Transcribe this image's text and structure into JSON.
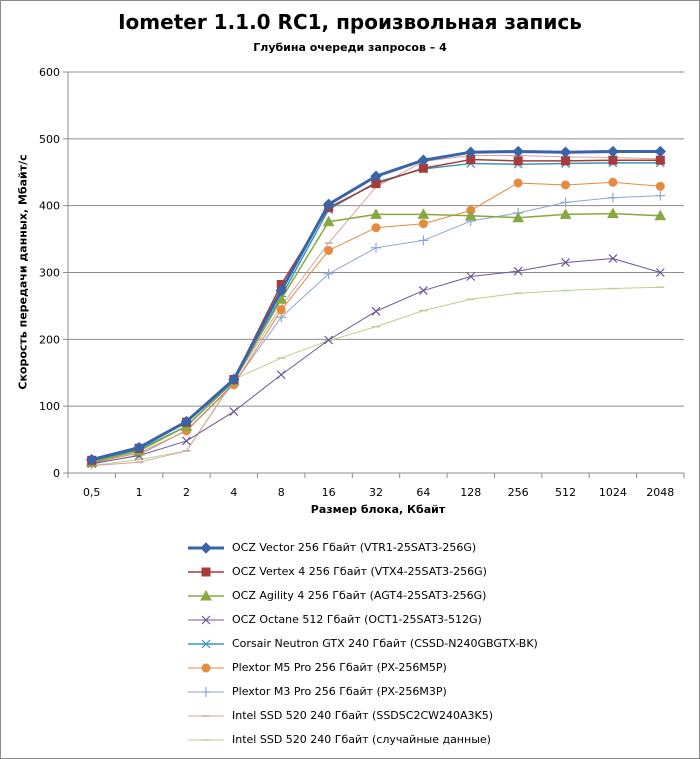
{
  "chart_data": {
    "type": "line",
    "title": "Iometer 1.1.0 RC1, произвольная запись",
    "subtitle": "Глубина очереди запросов – 4",
    "xlabel": "Размер блока, Кбайт",
    "ylabel": "Скорость передачи данных, Мбайт/с",
    "ylim": [
      0,
      600
    ],
    "yticks": [
      "0",
      "100",
      "200",
      "300",
      "400",
      "500",
      "600"
    ],
    "categories": [
      "0,5",
      "1",
      "2",
      "4",
      "8",
      "16",
      "32",
      "64",
      "128",
      "256",
      "512",
      "1024",
      "2048"
    ],
    "grid": true,
    "legend_position": "bottom",
    "series": [
      {
        "name": "OCZ Vector 256 Гбайт (VTR1-25SAT3-256G)",
        "color": "#3a64a8",
        "marker": "diamond",
        "width": 3,
        "values": [
          20,
          38,
          77,
          140,
          273,
          402,
          444,
          468,
          480,
          481,
          480,
          481,
          481
        ]
      },
      {
        "name": "OCZ Vertex 4 256 Гбайт (VTX4-25SAT3-256G)",
        "color": "#a83a3a",
        "marker": "square",
        "width": 1.5,
        "values": [
          19,
          37,
          76,
          140,
          282,
          397,
          433,
          456,
          469,
          467,
          467,
          468,
          468
        ]
      },
      {
        "name": "OCZ Agility 4 256 Гбайт (AGT4-25SAT3-256G)",
        "color": "#87a840",
        "marker": "triangle",
        "width": 1.5,
        "values": [
          16,
          33,
          70,
          138,
          260,
          376,
          387,
          387,
          385,
          382,
          387,
          388,
          385
        ]
      },
      {
        "name": "OCZ Octane 512 Гбайт (OCT1-25SAT3-512G)",
        "color": "#6f5596",
        "marker": "x",
        "width": 1,
        "values": [
          14,
          26,
          48,
          92,
          147,
          199,
          242,
          273,
          294,
          302,
          315,
          321,
          300
        ]
      },
      {
        "name": "Corsair Neutron GTX 240 Гбайт (CSSD-N240GBGTX-BK)",
        "color": "#3a9ab8",
        "marker": "asterisk",
        "width": 1.5,
        "values": [
          18,
          35,
          70,
          137,
          264,
          394,
          435,
          455,
          463,
          462,
          463,
          464,
          464
        ]
      },
      {
        "name": "Plextor M5 Pro 256 Гбайт (PX-256M5P)",
        "color": "#e68a40",
        "marker": "circle",
        "width": 1,
        "values": [
          15,
          30,
          63,
          132,
          244,
          333,
          367,
          373,
          393,
          434,
          431,
          435,
          429
        ]
      },
      {
        "name": "Plextor M3 Pro 256 Гбайт (PX-256M3P)",
        "color": "#8ea6d6",
        "marker": "plus",
        "width": 1,
        "values": [
          13,
          27,
          64,
          134,
          233,
          298,
          337,
          348,
          377,
          389,
          405,
          412,
          415
        ]
      },
      {
        "name": "Intel SSD 520 240 Гбайт (SSDSC2CW240A3K5)",
        "color": "#d4a5a0",
        "marker": "dash",
        "width": 1,
        "values": [
          11,
          16,
          33,
          138,
          250,
          344,
          428,
          466,
          475,
          475,
          473,
          472,
          470
        ]
      },
      {
        "name": "Intel SSD 520 240 Гбайт (случайные данные)",
        "color": "#b8d28c",
        "marker": "dash",
        "width": 1,
        "values": [
          11,
          20,
          33,
          140,
          172,
          198,
          219,
          243,
          260,
          269,
          273,
          276,
          278
        ]
      }
    ]
  }
}
